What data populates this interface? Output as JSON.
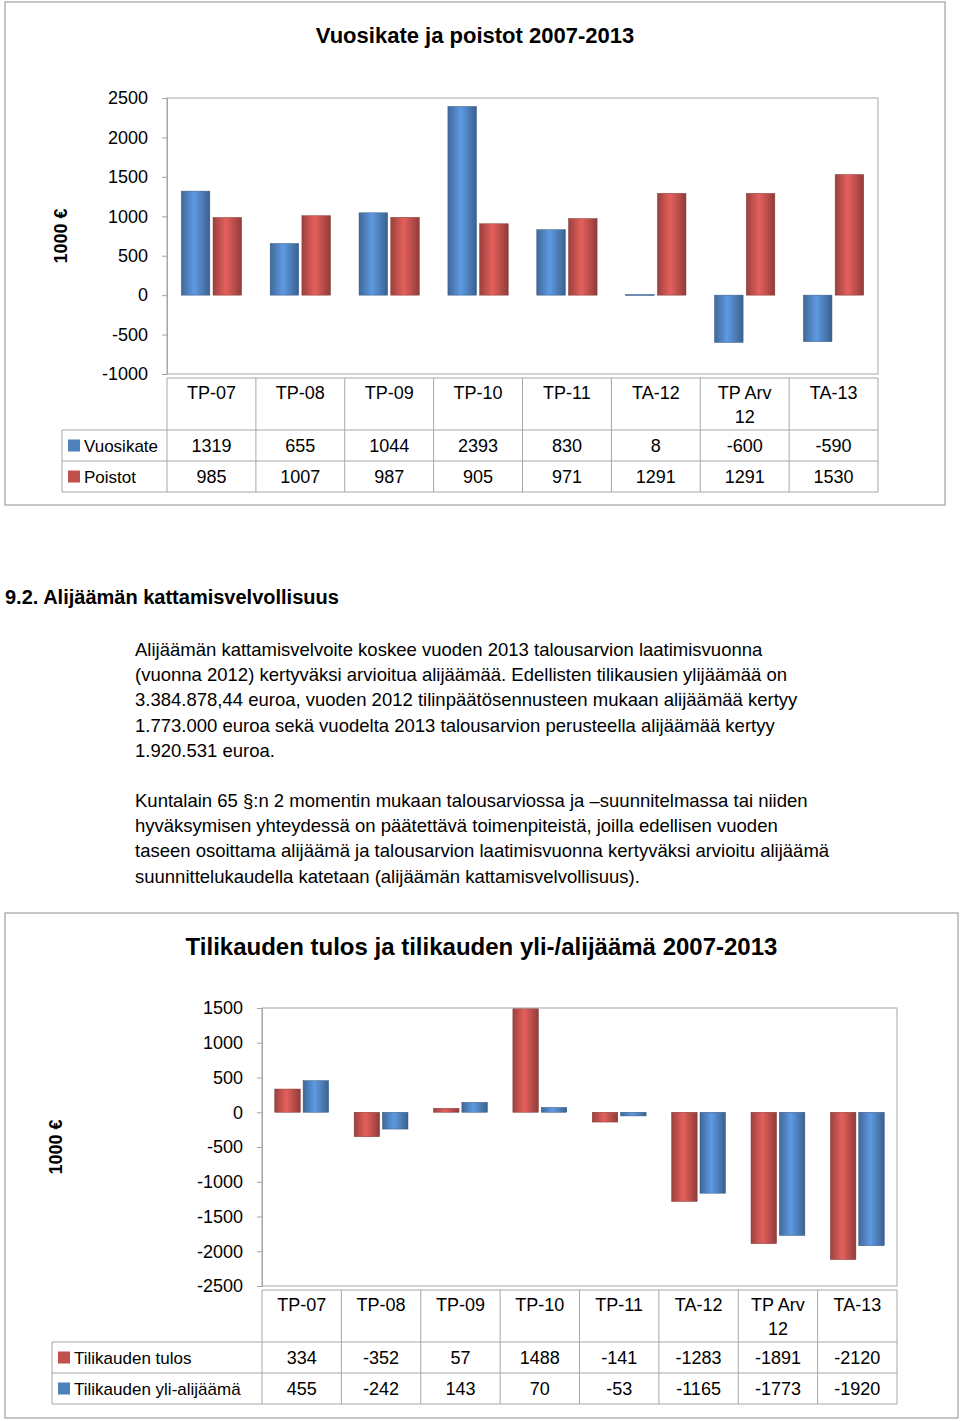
{
  "chart_data": [
    {
      "type": "bar",
      "title": "Vuosikate ja poistot 2007-2013",
      "y_label": "1000 €",
      "categories": [
        "TP-07",
        "TP-08",
        "TP-09",
        "TP-10",
        "TP-11",
        "TA-12",
        "TP Arv 12",
        "TA-13"
      ],
      "series": [
        {
          "name": "Vuosikate",
          "color": "#4f81bd",
          "values": [
            1319,
            655,
            1044,
            2393,
            830,
            8,
            -600,
            -590
          ]
        },
        {
          "name": "Poistot",
          "color": "#c0504d",
          "values": [
            985,
            1007,
            987,
            905,
            971,
            1291,
            1291,
            1530
          ]
        }
      ],
      "ylim": [
        -1000,
        2500
      ],
      "yticks": [
        -1000,
        -500,
        0,
        500,
        1000,
        1500,
        2000,
        2500
      ],
      "grid": false
    },
    {
      "type": "bar",
      "title": "Tilikauden tulos ja tilikauden yli-/alijäämä 2007-2013",
      "y_label": "1000 €",
      "categories": [
        "TP-07",
        "TP-08",
        "TP-09",
        "TP-10",
        "TP-11",
        "TA-12",
        "TP Arv 12",
        "TA-13"
      ],
      "series": [
        {
          "name": "Tilikauden tulos",
          "color": "#c0504d",
          "values": [
            334,
            -352,
            57,
            1488,
            -141,
            -1283,
            -1891,
            -2120
          ]
        },
        {
          "name": "Tilikauden yli-alijäämä",
          "color": "#4f81bd",
          "values": [
            455,
            -242,
            143,
            70,
            -53,
            -1165,
            -1773,
            -1920
          ]
        }
      ],
      "ylim": [
        -2500,
        1500
      ],
      "yticks": [
        -2500,
        -2000,
        -1500,
        -1000,
        -500,
        0,
        500,
        1000,
        1500
      ],
      "grid": false
    }
  ],
  "text": {
    "heading": "9.2. Alijäämän kattamisvelvollisuus",
    "paragraphs": [
      {
        "lines": [
          "Alijäämän kattamisvelvoite koskee vuoden 2013 talousarvion laatimisvuonna",
          "(vuonna 2012) kertyväksi arvioitua alijäämää. Edellisten tilikausien ylijäämää on",
          "3.384.878,44 euroa, vuoden 2012 tilinpäätösennusteen mukaan alijäämää kertyy",
          "1.773.000 euroa sekä vuodelta 2013 talousarvion perusteella alijäämää kertyy",
          "1.920.531 euroa."
        ]
      },
      {
        "lines": [
          "Kuntalain 65 §:n 2 momentin mukaan talousarviossa ja –suunnitelmassa tai niiden",
          "hyväksymisen yhteydessä on päätettävä toimenpiteistä, joilla edellisen vuoden",
          "taseen osoittama alijäämä ja talousarvion laatimisvuonna kertyväksi arvioitu alijäämä",
          "suunnittelukaudella katetaan (alijäämän kattamisvelvollisuus)."
        ]
      }
    ]
  }
}
